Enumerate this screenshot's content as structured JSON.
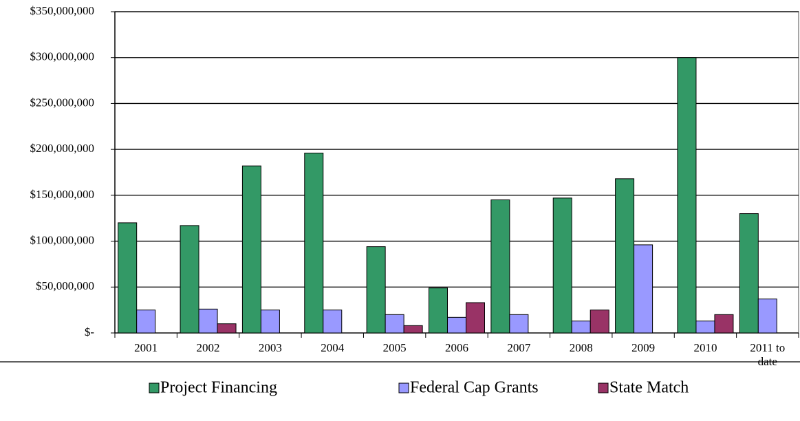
{
  "chart_data": {
    "type": "bar",
    "categories": [
      "2001",
      "2002",
      "2003",
      "2004",
      "2005",
      "2006",
      "2007",
      "2008",
      "2009",
      "2010",
      "2011 to date"
    ],
    "series": [
      {
        "name": "Project Financing",
        "color": "#339966",
        "values": [
          120000000,
          117000000,
          182000000,
          196000000,
          94000000,
          49000000,
          145000000,
          147000000,
          168000000,
          300000000,
          130000000
        ]
      },
      {
        "name": "Federal Cap Grants",
        "color": "#9999ff",
        "values": [
          25000000,
          26000000,
          25000000,
          25000000,
          20000000,
          17000000,
          20000000,
          13000000,
          96000000,
          13000000,
          37000000
        ]
      },
      {
        "name": "State Match",
        "color": "#993366",
        "values": [
          0,
          10000000,
          0,
          0,
          8000000,
          33000000,
          0,
          25000000,
          0,
          20000000,
          0
        ]
      }
    ],
    "ylim": [
      0,
      350000000
    ],
    "yticks": [
      {
        "value": 0,
        "label": "$-"
      },
      {
        "value": 50000000,
        "label": "$50,000,000"
      },
      {
        "value": 100000000,
        "label": "$100,000,000"
      },
      {
        "value": 150000000,
        "label": "$150,000,000"
      },
      {
        "value": 200000000,
        "label": "$200,000,000"
      },
      {
        "value": 250000000,
        "label": "$250,000,000"
      },
      {
        "value": 300000000,
        "label": "$300,000,000"
      },
      {
        "value": 350000000,
        "label": "$350,000,000"
      }
    ],
    "grid": true,
    "legend": "bottom"
  }
}
